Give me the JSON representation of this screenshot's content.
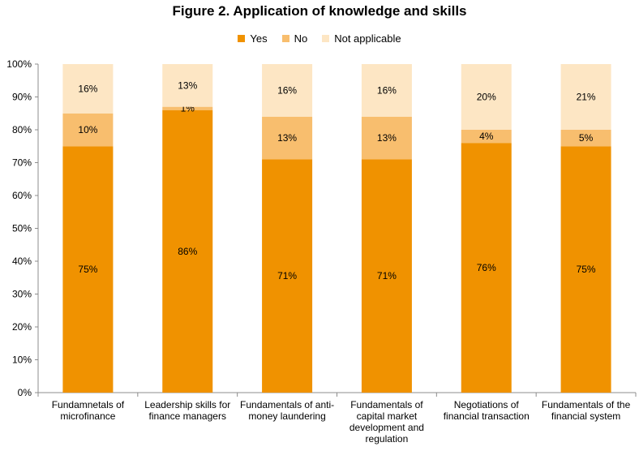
{
  "chart_data": {
    "type": "bar",
    "stacked": true,
    "title": "Figure 2. Application of knowledge and skills",
    "categories": [
      [
        "Fundamnetals of",
        "microfinance"
      ],
      [
        "Leadership skills for",
        "finance managers"
      ],
      [
        "Fundamentals of anti-",
        "money laundering"
      ],
      [
        "Fundamentals of",
        "capital market",
        "development and",
        "regulation"
      ],
      [
        "Negotiations of",
        "financial transaction"
      ],
      [
        "Fundamentals of the",
        "financial system"
      ]
    ],
    "series": [
      {
        "name": "Yes",
        "color": "#F09200",
        "values": [
          75,
          86,
          71,
          71,
          76,
          75
        ],
        "labels": [
          "75%",
          "86%",
          "71%",
          "71%",
          "76%",
          "75%"
        ]
      },
      {
        "name": "No",
        "color": "#F8BE6E",
        "values": [
          10,
          1,
          13,
          13,
          4,
          5
        ],
        "labels": [
          "10%",
          "1%",
          "13%",
          "13%",
          "4%",
          "5%"
        ]
      },
      {
        "name": "Not applicable",
        "color": "#FDE6C4",
        "values": [
          16,
          13,
          16,
          16,
          20,
          21
        ],
        "labels": [
          "16%",
          "13%",
          "16%",
          "16%",
          "20%",
          "21%"
        ]
      }
    ],
    "ylim": [
      0,
      100
    ],
    "yticks": [
      "0%",
      "10%",
      "20%",
      "30%",
      "40%",
      "50%",
      "60%",
      "70%",
      "80%",
      "90%",
      "100%"
    ],
    "grid": false,
    "legend_position": "top"
  }
}
